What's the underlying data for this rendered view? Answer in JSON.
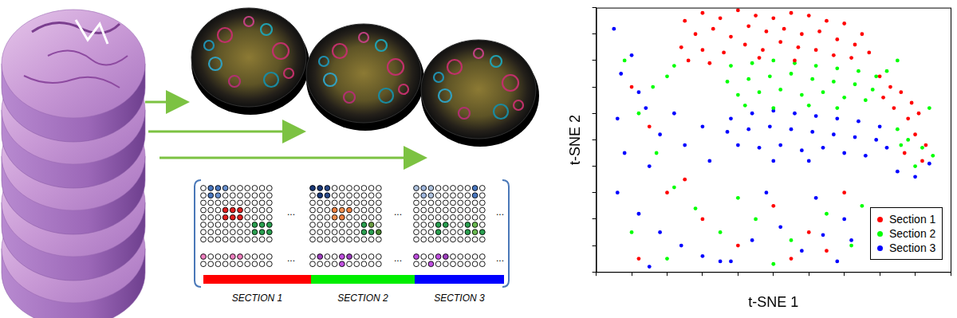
{
  "chart_data": {
    "type": "scatter",
    "x_label": "t-SNE 1",
    "y_label": "t-SNE 2",
    "xlim": [
      -50,
      50
    ],
    "ylim": [
      -50,
      50
    ],
    "xticks": [
      -50,
      -40,
      -30,
      -20,
      -10,
      0,
      10,
      20,
      30,
      40,
      50
    ],
    "yticks": [
      -50,
      -40,
      -30,
      -20,
      -10,
      0,
      10,
      20,
      30,
      40,
      50
    ],
    "grid": false,
    "tick_labels": false,
    "legend": "lower right",
    "series": [
      {
        "name": "Section 1",
        "color": "#ff0000",
        "marker": "circle",
        "x": [
          -25,
          -20,
          -15,
          -10,
          -5,
          0,
          5,
          10,
          15,
          20,
          25,
          -22,
          -17,
          -12,
          -7,
          -2,
          3,
          8,
          13,
          18,
          23,
          27,
          -26,
          -20,
          -14,
          -8,
          -3,
          2,
          7,
          12,
          17,
          22,
          -24,
          -18,
          -4,
          6,
          30,
          33,
          36,
          39,
          41,
          38,
          34,
          31,
          40,
          43,
          37,
          42,
          -40,
          -35,
          -30,
          -20,
          -10,
          0,
          10,
          20,
          -38,
          5,
          15,
          -25
        ],
        "values": [
          45,
          48,
          46,
          49,
          47,
          46,
          48,
          47,
          45,
          44,
          40,
          40,
          42,
          39,
          43,
          41,
          42,
          40,
          41,
          38,
          36,
          33,
          35,
          34,
          33,
          36,
          34,
          37,
          35,
          34,
          32,
          31,
          30,
          29,
          31,
          30,
          24,
          20,
          18,
          14,
          10,
          8,
          12,
          16,
          2,
          -2,
          -5,
          -8,
          20,
          5,
          -20,
          -30,
          -40,
          -25,
          -35,
          -20,
          -45,
          -45,
          -42,
          -15
        ]
      },
      {
        "name": "Section 2",
        "color": "#00ff00",
        "marker": "circle",
        "x": [
          -12,
          -6,
          0,
          6,
          12,
          18,
          24,
          29,
          -13,
          -7,
          -1,
          5,
          11,
          17,
          23,
          28,
          -10,
          -4,
          2,
          8,
          14,
          20,
          26,
          -8,
          0,
          10,
          18,
          35,
          38,
          42,
          45,
          40,
          36,
          32,
          35,
          44,
          -28,
          -30,
          -34,
          -42,
          -38,
          -33,
          -28,
          -22,
          -15,
          -5,
          5,
          15,
          22,
          -40,
          -30,
          0,
          25,
          -10
        ],
        "values": [
          28,
          29,
          30,
          29,
          28,
          27,
          26,
          24,
          22,
          23,
          24,
          25,
          23,
          22,
          21,
          19,
          17,
          18,
          19,
          17,
          18,
          16,
          15,
          13,
          12,
          13,
          12,
          4,
          0,
          -3,
          -6,
          -10,
          -2,
          26,
          30,
          12,
          28,
          24,
          20,
          30,
          10,
          -5,
          -18,
          -26,
          -35,
          -30,
          -38,
          -28,
          -40,
          -35,
          -45,
          -47,
          -25,
          -22
        ]
      },
      {
        "name": "Section 3",
        "color": "#0000ff",
        "marker": "circle",
        "x": [
          -12,
          -6,
          0,
          6,
          12,
          18,
          24,
          30,
          -13,
          -7,
          -1,
          5,
          11,
          17,
          23,
          29,
          -10,
          -4,
          2,
          8,
          14,
          20,
          26,
          32,
          0,
          10,
          35,
          40,
          44,
          -45,
          -43,
          -40,
          -38,
          -36,
          -44,
          -32,
          -28,
          -25,
          -42,
          -35,
          -20,
          -18,
          -44,
          -38,
          -32,
          -26,
          -20,
          -12,
          -6,
          2,
          8,
          14,
          20,
          22,
          -15,
          -2,
          12,
          18,
          -35
        ],
        "values": [
          8,
          10,
          11,
          10,
          9,
          8,
          7,
          5,
          3,
          4,
          5,
          4,
          3,
          2,
          1,
          0,
          -2,
          -3,
          -2,
          -4,
          -3,
          -5,
          -6,
          -3,
          -8,
          -8,
          -12,
          -14,
          -9,
          42,
          25,
          32,
          18,
          12,
          8,
          2,
          10,
          -2,
          -5,
          -10,
          5,
          -8,
          -20,
          -28,
          -35,
          -40,
          -44,
          -46,
          -38,
          -33,
          -42,
          -36,
          -30,
          -38,
          -46,
          -20,
          -22,
          -46,
          -48
        ]
      }
    ]
  },
  "diagram": {
    "separator": "...",
    "sections": [
      {
        "label": "SECTION 1",
        "color": "#ff0000"
      },
      {
        "label": "SECTION 2",
        "color": "#00ee00"
      },
      {
        "label": "SECTION 3",
        "color": "#0000ff"
      }
    ]
  }
}
